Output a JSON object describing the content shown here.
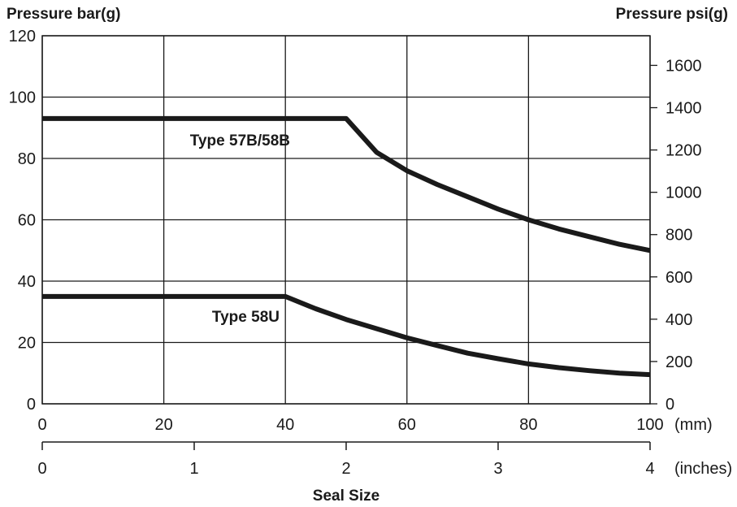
{
  "chart_data": {
    "type": "line",
    "left_axis_title": "Pressure bar(g)",
    "right_axis_title": "Pressure psi(g)",
    "xlabel": "Seal Size",
    "x_unit_mm": "(mm)",
    "x_unit_inches": "(inches)",
    "xlim_mm": [
      0,
      100
    ],
    "ylim_bar": [
      0,
      120
    ],
    "ylim_psi": [
      0,
      1740
    ],
    "x_ticks_mm": [
      "0",
      "20",
      "40",
      "60",
      "80",
      "100"
    ],
    "x_ticks_inches": [
      "0",
      "1",
      "2",
      "3",
      "4"
    ],
    "y_ticks_bar": [
      "0",
      "20",
      "40",
      "60",
      "80",
      "100",
      "120"
    ],
    "y_ticks_psi": [
      "0",
      "200",
      "400",
      "600",
      "800",
      "1000",
      "1200",
      "1400",
      "1600"
    ],
    "grid": true,
    "series": [
      {
        "name": "Type 57B/58B",
        "x": [
          0,
          50,
          55,
          60,
          65,
          70,
          75,
          80,
          85,
          90,
          95,
          100
        ],
        "y": [
          93,
          93,
          82,
          76,
          71.5,
          67.5,
          63.5,
          60,
          57,
          54.5,
          52,
          50
        ]
      },
      {
        "name": "Type 58U",
        "x": [
          0,
          40,
          45,
          50,
          55,
          60,
          65,
          70,
          75,
          80,
          85,
          90,
          95,
          100
        ],
        "y": [
          35,
          35,
          31,
          27.5,
          24.5,
          21.5,
          19,
          16.5,
          14.7,
          13,
          11.8,
          10.8,
          10,
          9.5
        ]
      }
    ]
  }
}
